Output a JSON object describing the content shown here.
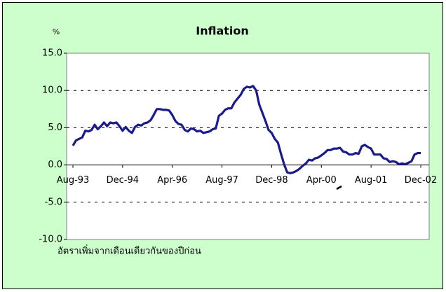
{
  "chart_data": {
    "type": "line",
    "title": "Inflation",
    "y_label": "%",
    "note": "อัตราเพิ่มจากเดือนเดียวกันของปีก่อน",
    "categories": [
      "Aug-93",
      null,
      null,
      null,
      null,
      null,
      null,
      null,
      null,
      null,
      null,
      null,
      null,
      null,
      null,
      null,
      "Dec-94",
      null,
      null,
      null,
      null,
      null,
      null,
      null,
      null,
      null,
      null,
      null,
      null,
      null,
      null,
      null,
      "Apr-96",
      null,
      null,
      null,
      null,
      null,
      null,
      null,
      null,
      null,
      null,
      null,
      null,
      null,
      null,
      null,
      "Aug-97",
      null,
      null,
      null,
      null,
      null,
      null,
      null,
      null,
      null,
      null,
      null,
      null,
      null,
      null,
      null,
      "Dec-98",
      null,
      null,
      null,
      null,
      null,
      null,
      null,
      null,
      null,
      null,
      null,
      null,
      null,
      null,
      null,
      "Apr-00",
      null,
      null,
      null,
      null,
      null,
      null,
      null,
      null,
      null,
      null,
      null,
      null,
      null,
      null,
      null,
      "Aug-01",
      null,
      null,
      null,
      null,
      null,
      null,
      null,
      null,
      null,
      null,
      null,
      null,
      null,
      null,
      null,
      "Dec-02"
    ],
    "series": [
      {
        "color": "#1a1a8c",
        "values": [
          2.6,
          3.3,
          3.5,
          3.7,
          4.6,
          4.5,
          4.7,
          5.4,
          4.8,
          5.2,
          5.7,
          5.2,
          5.7,
          5.6,
          5.7,
          5.2,
          4.6,
          5.1,
          4.6,
          4.3,
          5.1,
          5.4,
          5.3,
          5.6,
          5.7,
          6.0,
          6.7,
          7.5,
          7.5,
          7.4,
          7.4,
          7.3,
          6.7,
          5.9,
          5.5,
          5.4,
          4.7,
          4.5,
          4.9,
          4.8,
          4.5,
          4.6,
          4.3,
          4.4,
          4.5,
          4.8,
          4.9,
          6.6,
          6.9,
          7.4,
          7.6,
          7.6,
          8.4,
          8.9,
          9.4,
          10.2,
          10.5,
          10.4,
          10.6,
          10.0,
          8.1,
          7.0,
          5.9,
          4.7,
          4.3,
          3.5,
          3.0,
          1.5,
          0.1,
          -1.0,
          -1.1,
          -1.0,
          -0.8,
          -0.5,
          -0.1,
          0.2,
          0.7,
          0.6,
          0.9,
          1.0,
          1.3,
          1.6,
          2.0,
          2.0,
          2.2,
          2.2,
          2.3,
          1.8,
          1.7,
          1.4,
          1.4,
          1.6,
          1.5,
          2.5,
          2.7,
          2.4,
          2.2,
          1.4,
          1.4,
          1.4,
          0.9,
          0.8,
          0.4,
          0.5,
          0.4,
          0.1,
          0.2,
          0.1,
          0.3,
          0.5,
          1.4,
          1.6,
          1.6
        ]
      }
    ],
    "ylim": [
      -10,
      15
    ],
    "yticks": [
      {
        "value": -10,
        "label": "-10.0"
      },
      {
        "value": -5,
        "label": "-5.0"
      },
      {
        "value": 0,
        "label": "0.0"
      },
      {
        "value": 5,
        "label": "5.0"
      },
      {
        "value": 10,
        "label": "10.0"
      },
      {
        "value": 15,
        "label": "15.0"
      }
    ],
    "grid": true
  }
}
